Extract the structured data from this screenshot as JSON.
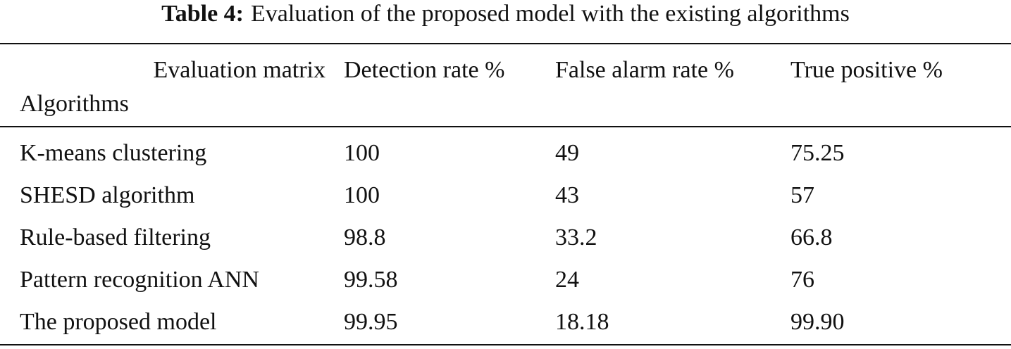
{
  "caption": {
    "label": "Table 4:",
    "text": "Evaluation of the proposed model with the existing algorithms"
  },
  "header": {
    "corner_top": "Evaluation matrix",
    "corner_bottom": "Algorithms",
    "columns": [
      "Detection rate %",
      "False alarm rate %",
      "True positive %"
    ]
  },
  "rows": [
    {
      "algorithm": "K-means clustering",
      "values": [
        "100",
        "49",
        "75.25"
      ]
    },
    {
      "algorithm": "SHESD algorithm",
      "values": [
        "100",
        "43",
        "57"
      ]
    },
    {
      "algorithm": "Rule-based filtering",
      "values": [
        "98.8",
        "33.2",
        "66.8"
      ]
    },
    {
      "algorithm": "Pattern recognition ANN",
      "values": [
        "99.58",
        "24",
        "76"
      ]
    },
    {
      "algorithm": "The proposed model",
      "values": [
        "99.95",
        "18.18",
        "99.90"
      ]
    }
  ]
}
